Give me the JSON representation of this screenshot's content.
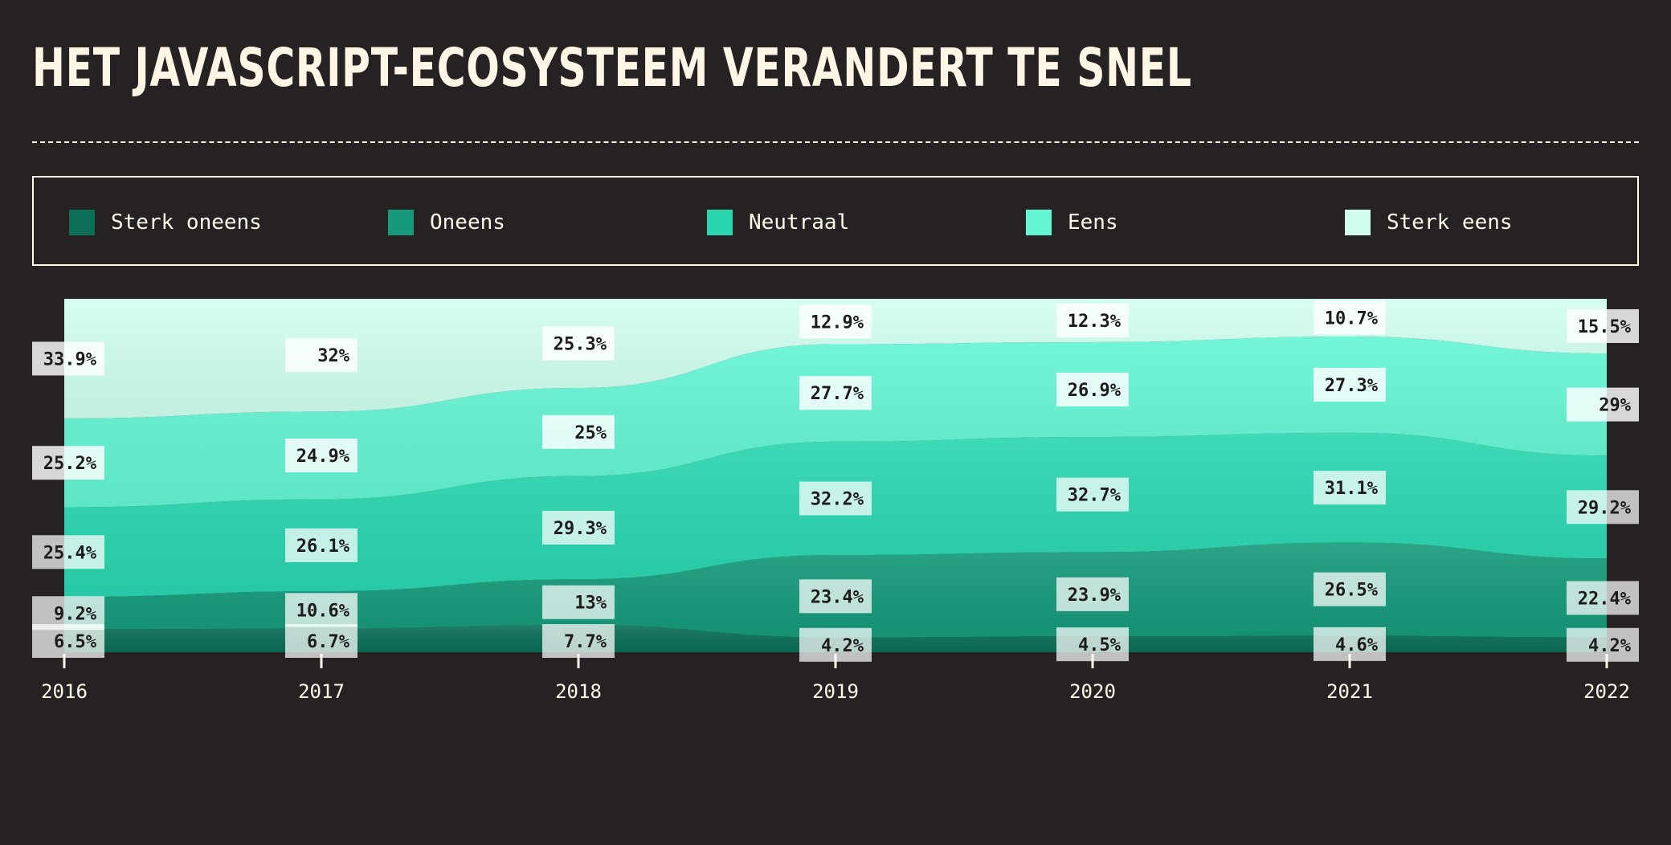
{
  "title": "HET JAVASCRIPT-ECOSYSTEEM VERANDERT TE SNEL",
  "colors": {
    "background": "#262223",
    "text": "#fffbeb",
    "series": [
      "#0b6e55",
      "#169a7a",
      "#2ad6b0",
      "#64f5d3",
      "#d0fff0"
    ]
  },
  "legend": {
    "items": [
      {
        "label": "Sterk oneens",
        "color": "#0b6e55"
      },
      {
        "label": "Oneens",
        "color": "#169a7a"
      },
      {
        "label": "Neutraal",
        "color": "#2ad6b0"
      },
      {
        "label": "Eens",
        "color": "#64f5d3"
      },
      {
        "label": "Sterk eens",
        "color": "#d0fff0"
      }
    ]
  },
  "chart_data": {
    "type": "area",
    "stacking": "percent",
    "categories": [
      "2016",
      "2017",
      "2018",
      "2019",
      "2020",
      "2021",
      "2022"
    ],
    "series": [
      {
        "name": "Sterk oneens",
        "values": [
          6.5,
          6.7,
          7.7,
          4.2,
          4.5,
          4.6,
          4.2
        ],
        "labels": [
          "6.5%",
          "6.7%",
          "7.7%",
          "4.2%",
          "4.5%",
          "4.6%",
          "4.2%"
        ]
      },
      {
        "name": "Oneens",
        "values": [
          9.2,
          10.6,
          13,
          23.4,
          23.9,
          26.5,
          22.4
        ],
        "labels": [
          "9.2%",
          "10.6%",
          "13%",
          "23.4%",
          "23.9%",
          "26.5%",
          "22.4%"
        ]
      },
      {
        "name": "Neutraal",
        "values": [
          25.4,
          26.1,
          29.3,
          32.2,
          32.7,
          31.1,
          29.2
        ],
        "labels": [
          "25.4%",
          "26.1%",
          "29.3%",
          "32.2%",
          "32.7%",
          "31.1%",
          "29.2%"
        ]
      },
      {
        "name": "Eens",
        "values": [
          25.2,
          24.9,
          25,
          27.7,
          26.9,
          27.3,
          29
        ],
        "labels": [
          "25.2%",
          "24.9%",
          "25%",
          "27.7%",
          "26.9%",
          "27.3%",
          "29%"
        ]
      },
      {
        "name": "Sterk eens",
        "values": [
          33.9,
          32,
          25.3,
          12.9,
          12.3,
          10.7,
          15.5
        ],
        "labels": [
          "33.9%",
          "32%",
          "25.3%",
          "12.9%",
          "12.3%",
          "10.7%",
          "15.5%"
        ]
      }
    ],
    "ylim": [
      0,
      100
    ],
    "xlabel": "",
    "ylabel": "",
    "legend_position": "top",
    "grid": false
  }
}
